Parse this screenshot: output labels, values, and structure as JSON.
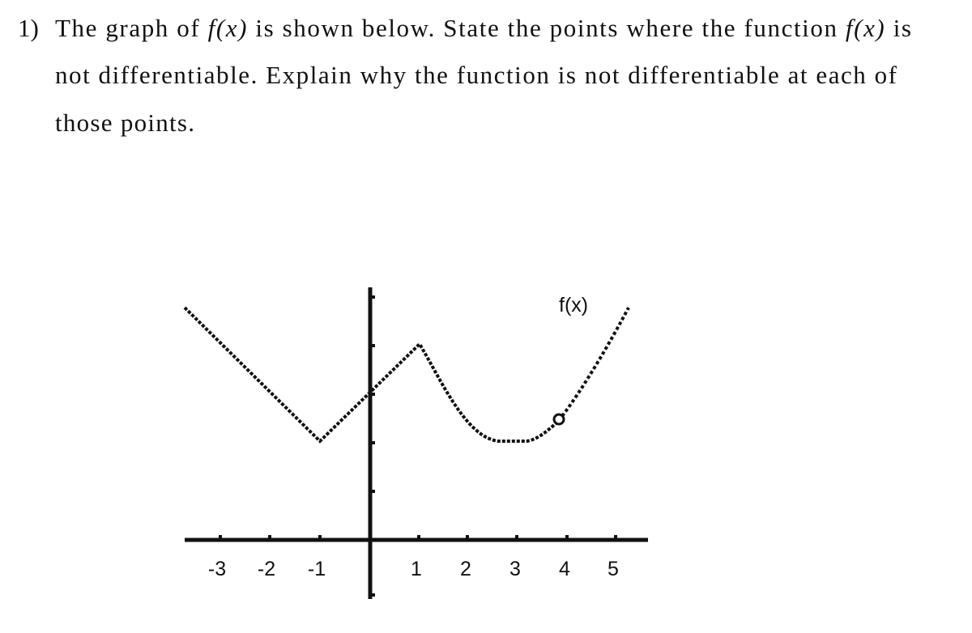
{
  "question": {
    "number": "1)",
    "lines": [
      [
        "The graph of ",
        "f(x)",
        " is shown below.  State the points where the function ",
        "f(x)",
        " is"
      ],
      [
        "not differentiable.  Explain why the function is not differentiable at each of"
      ],
      [
        "those points."
      ]
    ]
  },
  "graph": {
    "curve_label": "f(x)",
    "x_tick_labels": [
      "-3",
      "-2",
      "-1",
      "1",
      "2",
      "3",
      "4",
      "5"
    ]
  }
}
